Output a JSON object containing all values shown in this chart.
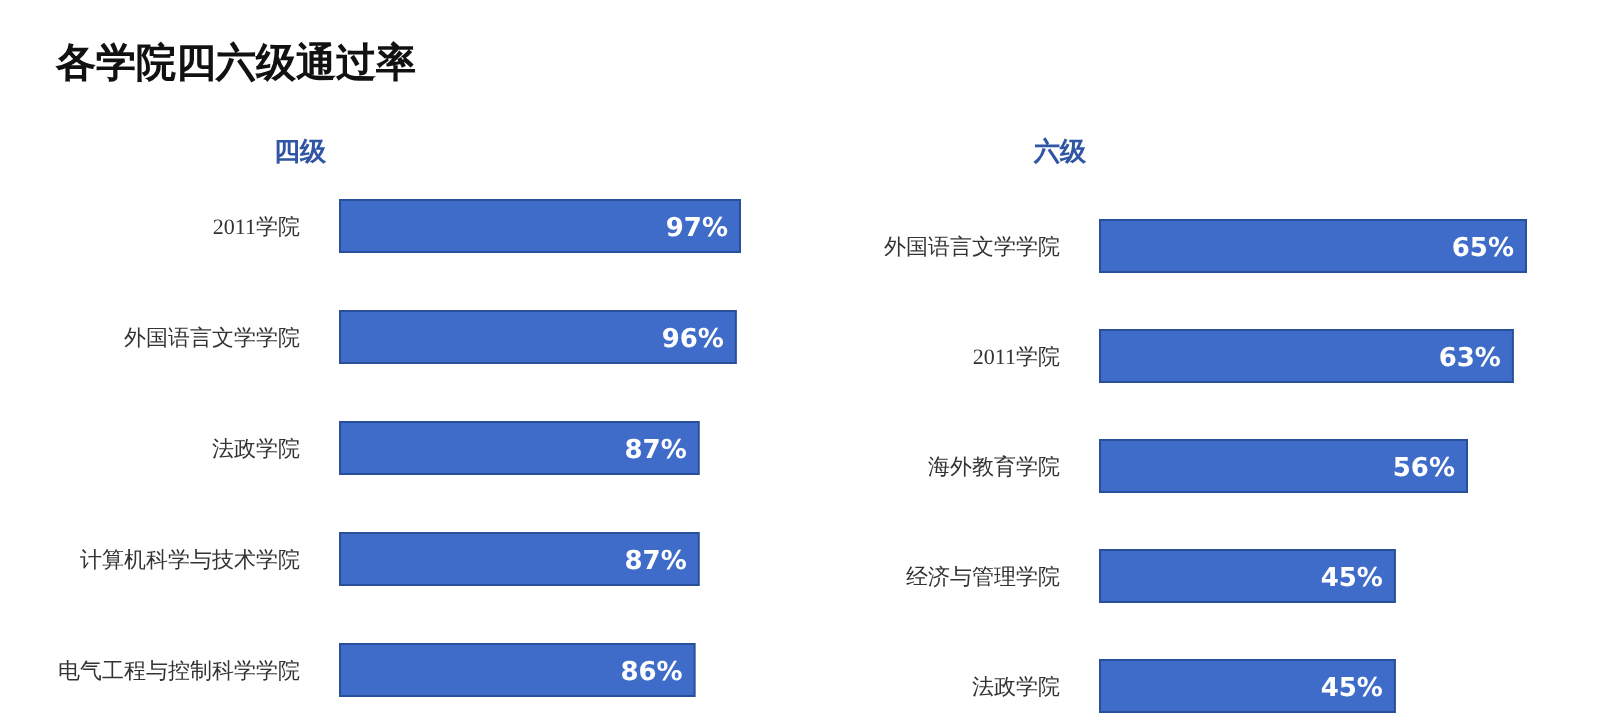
{
  "chart_data": [
    {
      "type": "bar",
      "orientation": "horizontal",
      "title": "各学院四六级通过率",
      "subtitle": "四级",
      "categories": [
        "2011学院",
        "外国语言文学学院",
        "法政学院",
        "计算机科学与技术学院",
        "电气工程与控制科学学院"
      ],
      "values": [
        97,
        96,
        87,
        87,
        86
      ],
      "value_labels": [
        "97%",
        "96%",
        "87%",
        "87%",
        "86%"
      ],
      "color": "#3f6cc8"
    },
    {
      "type": "bar",
      "orientation": "horizontal",
      "subtitle": "六级",
      "categories": [
        "外国语言文学学院",
        "2011学院",
        "海外教育学院",
        "经济与管理学院",
        "法政学院"
      ],
      "values": [
        65,
        63,
        56,
        45,
        45
      ],
      "value_labels": [
        "65%",
        "63%",
        "56%",
        "45%",
        "45%"
      ],
      "color": "#3f6cc8"
    }
  ]
}
